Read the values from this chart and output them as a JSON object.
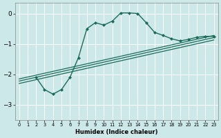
{
  "xlabel": "Humidex (Indice chaleur)",
  "ylabel": "",
  "bg_color": "#cce8e8",
  "grid_color": "#ffffff",
  "line_color": "#1a6b5a",
  "xlim": [
    -0.5,
    23.5
  ],
  "ylim": [
    -3.5,
    0.35
  ],
  "xticks": [
    0,
    1,
    2,
    3,
    4,
    5,
    6,
    7,
    8,
    9,
    10,
    11,
    12,
    13,
    14,
    15,
    16,
    17,
    18,
    19,
    20,
    21,
    22,
    23
  ],
  "yticks": [
    0,
    -1,
    -2,
    -3
  ],
  "series": [
    {
      "x": [
        2,
        3,
        4,
        5,
        6,
        7,
        8,
        9,
        10,
        11,
        12,
        13,
        14,
        15,
        16,
        17,
        18,
        19,
        20,
        21,
        22,
        23
      ],
      "y": [
        -2.1,
        -2.5,
        -2.65,
        -2.5,
        -2.1,
        -1.45,
        -0.5,
        -0.3,
        -0.38,
        -0.25,
        0.02,
        0.02,
        0.0,
        -0.3,
        -0.62,
        -0.72,
        -0.83,
        -0.9,
        -0.85,
        -0.78,
        -0.75,
        -0.75
      ],
      "marker": "D",
      "markersize": 2.0,
      "linewidth": 1.0
    },
    {
      "x": [
        0,
        23
      ],
      "y": [
        -2.15,
        -0.72
      ],
      "marker": null,
      "linewidth": 0.9
    },
    {
      "x": [
        0,
        23
      ],
      "y": [
        -2.22,
        -0.79
      ],
      "marker": null,
      "linewidth": 0.9
    },
    {
      "x": [
        0,
        23
      ],
      "y": [
        -2.3,
        -0.87
      ],
      "marker": null,
      "linewidth": 0.9
    }
  ]
}
